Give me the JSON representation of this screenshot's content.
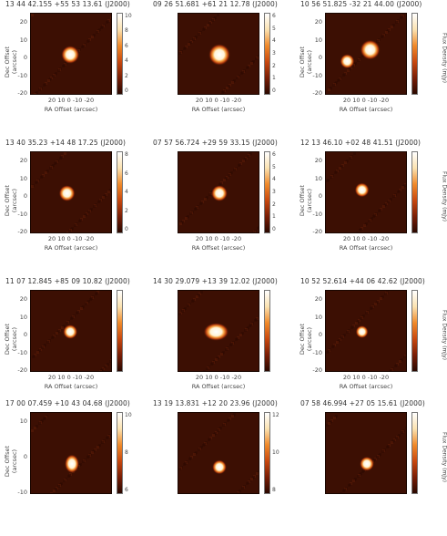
{
  "colors": {
    "background": "#3c0f03",
    "source_core": "#ffffff",
    "source_glow": "#f08a2a"
  },
  "panels": [
    {
      "title": "13 44 42.155 +55 53 13.61 (J2000)",
      "ylabel": "Dec Offset (arcsec)",
      "xlabel": "RA Offset (arcsec)",
      "yticks": [
        "20",
        "10",
        "0",
        "-10",
        "-20"
      ],
      "xticks": "20  10  0  -10 -20",
      "cticks": [
        "10",
        "8",
        "6",
        "4",
        "2",
        "0"
      ],
      "clabel": "",
      "sources": [
        {
          "x": 1,
          "y": 0,
          "r": 10
        }
      ]
    },
    {
      "title": "09 26 51.681 +61 21 12.78 (J2000)",
      "ylabel": "Dec Offset (arcsec)",
      "xlabel": "RA Offset (arcsec)",
      "yticks": [],
      "xticks": "20  10  0  -10 -20",
      "cticks": [
        "6",
        "5",
        "4",
        "3",
        "2",
        "1",
        "0"
      ],
      "clabel": "",
      "sources": [
        {
          "x": 0,
          "y": 0,
          "r": 12
        }
      ]
    },
    {
      "title": "10 56 51.825 -32 21 44.00 (J2000)",
      "ylabel": "Dec Offset (arcsec)",
      "xlabel": "RA Offset (arcsec)",
      "yticks": [
        "20",
        "10",
        "0",
        "-10",
        "-20"
      ],
      "xticks": "20  10  0  -10 -20",
      "cticks": [
        "",
        "",
        "",
        "",
        "",
        ""
      ],
      "clabel": "Flux Density (mJy)",
      "sources": [
        {
          "x": -2,
          "y": 3,
          "r": 11
        },
        {
          "x": 12,
          "y": -4,
          "r": 8
        }
      ]
    },
    {
      "title": "13 40 35.23 +14 48 17.25 (J2000)",
      "ylabel": "Dec Offset (arcsec)",
      "xlabel": "RA Offset (arcsec)",
      "yticks": [
        "20",
        "10",
        "0",
        "-10",
        "-20"
      ],
      "xticks": "20  10  0  -10 -20",
      "cticks": [
        "8",
        "6",
        "4",
        "2",
        "0"
      ],
      "clabel": "",
      "sources": [
        {
          "x": 3,
          "y": 0,
          "r": 9
        }
      ]
    },
    {
      "title": "07 57 56.724 +29 59 33.15 (J2000)",
      "ylabel": "Dec Offset (arcsec)",
      "xlabel": "RA Offset (arcsec)",
      "yticks": [],
      "xticks": "20  10  0  -10 -20",
      "cticks": [
        "6",
        "5",
        "4",
        "3",
        "2",
        "1",
        "0"
      ],
      "clabel": "",
      "sources": [
        {
          "x": 0,
          "y": 0,
          "r": 9
        }
      ]
    },
    {
      "title": "12 13 46.10 +02 48 41.51 (J2000)",
      "ylabel": "Dec Offset (arcsec)",
      "xlabel": "RA Offset (arcsec)",
      "yticks": [
        "20",
        "10",
        "0",
        "-10",
        "-20"
      ],
      "xticks": "20  10  0  -10 -20",
      "cticks": [
        "",
        "",
        "",
        "",
        "",
        ""
      ],
      "clabel": "Flux Density (mJy)",
      "sources": [
        {
          "x": 3,
          "y": 2,
          "r": 8
        }
      ]
    },
    {
      "title": "11 07 12.845 +85 09 10.82 (J2000)",
      "ylabel": "Dec Offset (arcsec)",
      "xlabel": "RA Offset (arcsec)",
      "yticks": [
        "20",
        "10",
        "0",
        "-10",
        "-20"
      ],
      "xticks": "20  10  0  -10 -20",
      "cticks": [
        "",
        "",
        "",
        "",
        "",
        ""
      ],
      "clabel": "",
      "sources": [
        {
          "x": 1,
          "y": 0,
          "r": 8
        }
      ]
    },
    {
      "title": "14 30 29.079 +13 39 12.02 (J2000)",
      "ylabel": "Dec Offset (arcsec)",
      "xlabel": "RA Offset (arcsec)",
      "yticks": [],
      "xticks": "20  10  0  -10 -20",
      "cticks": [
        "",
        "",
        "",
        "",
        "",
        ""
      ],
      "clabel": "",
      "sources": [
        {
          "x": 2,
          "y": 0,
          "r": 10,
          "sx": 1.4
        }
      ]
    },
    {
      "title": "10 52 52.614 +44 06 42.62 (J2000)",
      "ylabel": "Dec Offset (arcsec)",
      "xlabel": "RA Offset (arcsec)",
      "yticks": [
        "20",
        "10",
        "0",
        "-10",
        "-20"
      ],
      "xticks": "20  10  0  -10 -20",
      "cticks": [
        "",
        "",
        "",
        "",
        "",
        ""
      ],
      "clabel": "Flux Density (mJy)",
      "sources": [
        {
          "x": 3,
          "y": 0,
          "r": 7
        }
      ]
    },
    {
      "title": "17 00 07.459 +10 43 04.68 (J2000)",
      "ylabel": "Dec Offset (arcsec)",
      "xlabel": "",
      "yticks": [
        "10",
        "0",
        "-10"
      ],
      "xticks": "",
      "cticks": [
        "10",
        "8",
        "6"
      ],
      "clabel": "",
      "sources": [
        {
          "x": 0,
          "y": -6,
          "r": 8,
          "sy": 1.3
        }
      ]
    },
    {
      "title": "13 19 13.831 +12 20 23.96 (J2000)",
      "ylabel": "Dec Offset (arcsec)",
      "xlabel": "",
      "yticks": [],
      "xticks": "",
      "cticks": [
        "12",
        "10",
        "8"
      ],
      "clabel": "",
      "sources": [
        {
          "x": 0,
          "y": -8,
          "r": 8
        }
      ]
    },
    {
      "title": "07 58 46.994 +27 05 15.61 (J2000)",
      "ylabel": "Dec Offset (arcsec)",
      "xlabel": "",
      "yticks": [],
      "xticks": "",
      "cticks": [],
      "clabel": "Flux Density (mJy)",
      "sources": [
        {
          "x": 0,
          "y": -6,
          "r": 8
        }
      ]
    }
  ]
}
